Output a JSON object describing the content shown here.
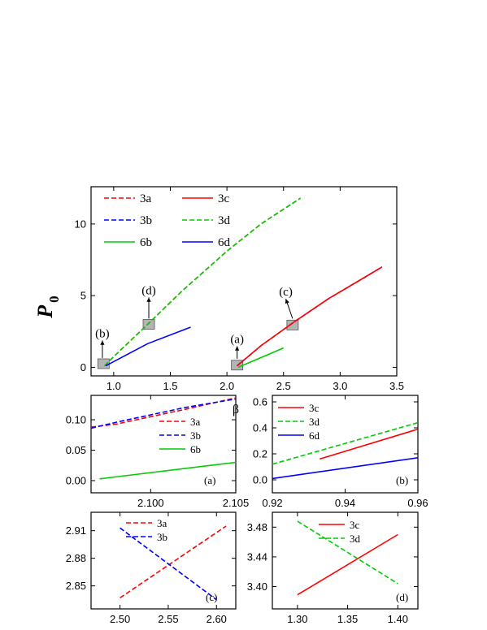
{
  "figure": {
    "ylabel_main": "P",
    "ylabel_main_sub": "0",
    "xlabel_shared": "β"
  },
  "chart_data": [
    {
      "id": "main",
      "type": "line",
      "xlim": [
        0.8,
        3.5
      ],
      "ylim": [
        -0.6,
        12.6
      ],
      "xticks": [
        "1.0",
        "1.5",
        "2.0",
        "2.5",
        "3.0",
        "3.5"
      ],
      "xtick_values": [
        1.0,
        1.5,
        2.0,
        2.5,
        3.0,
        3.5
      ],
      "yticks": [
        "0",
        "5",
        "10"
      ],
      "ytick_values": [
        0,
        5,
        10
      ],
      "legend_layout": "top-left, two columns",
      "series": [
        {
          "name": "3a",
          "color": "#ff0000",
          "dash": "dashed",
          "x": [
            0.92,
            1.0,
            1.3,
            1.6,
            2.0,
            2.3,
            2.65
          ],
          "y": [
            0.1,
            0.75,
            3.0,
            5.3,
            8.1,
            10.0,
            11.8
          ]
        },
        {
          "name": "3b",
          "color": "#0000ff",
          "dash": "dashed",
          "x": [
            2.09,
            2.3,
            2.6,
            2.9,
            3.2,
            3.37
          ],
          "y": [
            0.1,
            1.5,
            3.2,
            4.8,
            6.2,
            7.0
          ]
        },
        {
          "name": "6b",
          "color": "#00cc00",
          "dash": "solid",
          "x": [
            2.1,
            2.5
          ],
          "y": [
            0.0,
            1.35
          ]
        },
        {
          "name": "3c",
          "color": "#ff0000",
          "dash": "solid",
          "x": [
            2.09,
            2.3,
            2.6,
            2.9,
            3.2,
            3.37
          ],
          "y": [
            0.1,
            1.5,
            3.2,
            4.8,
            6.2,
            7.0
          ]
        },
        {
          "name": "3d",
          "color": "#00cc00",
          "dash": "dashed",
          "x": [
            0.92,
            1.0,
            1.3,
            1.6,
            2.0,
            2.3,
            2.65
          ],
          "y": [
            0.1,
            0.75,
            3.0,
            5.3,
            8.1,
            10.0,
            11.8
          ]
        },
        {
          "name": "6d",
          "color": "#0000ff",
          "dash": "solid",
          "x": [
            0.93,
            1.3,
            1.68
          ],
          "y": [
            0.1,
            1.65,
            2.8
          ]
        }
      ],
      "boxes": [
        {
          "x": 0.91,
          "y": 0.25
        },
        {
          "x": 1.31,
          "y": 3.0
        },
        {
          "x": 2.09,
          "y": 0.15
        },
        {
          "x": 2.58,
          "y": 2.95
        }
      ],
      "annotations": [
        {
          "text": "(b)",
          "x": 0.9,
          "y": 2.1,
          "ax": 0.9,
          "ay": 0.65
        },
        {
          "text": "(d)",
          "x": 1.31,
          "y": 5.1,
          "ax": 1.31,
          "ay": 3.4
        },
        {
          "text": "(a)",
          "x": 2.09,
          "y": 1.7,
          "ax": 2.09,
          "ay": 0.6
        },
        {
          "text": "(c)",
          "x": 2.52,
          "y": 5.0,
          "ax": 2.58,
          "ay": 3.4
        }
      ]
    },
    {
      "id": "a",
      "type": "line",
      "panel_label": "(a)",
      "xlim": [
        2.0965,
        2.105
      ],
      "ylim": [
        -0.02,
        0.14
      ],
      "xticks": [
        "2.100",
        "2.105"
      ],
      "xtick_values": [
        2.1,
        2.105
      ],
      "yticks": [
        "0.00",
        "0.05",
        "0.10"
      ],
      "ytick_values": [
        0.0,
        0.05,
        0.1
      ],
      "legend_layout": "right, single column",
      "series": [
        {
          "name": "3a",
          "color": "#ff0000",
          "dash": "dashed",
          "x": [
            2.0965,
            2.098,
            2.1,
            2.102,
            2.105
          ],
          "y": [
            0.088,
            0.093,
            0.105,
            0.117,
            0.136
          ]
        },
        {
          "name": "3b",
          "color": "#0000ff",
          "dash": "dashed",
          "x": [
            2.0965,
            2.098,
            2.1,
            2.102,
            2.105
          ],
          "y": [
            0.086,
            0.096,
            0.108,
            0.12,
            0.134
          ]
        },
        {
          "name": "6b",
          "color": "#00cc00",
          "dash": "solid",
          "x": [
            2.097,
            2.105
          ],
          "y": [
            0.003,
            0.03
          ]
        }
      ]
    },
    {
      "id": "b",
      "type": "line",
      "panel_label": "(b)",
      "xlim": [
        0.92,
        0.96
      ],
      "ylim": [
        -0.1,
        0.65
      ],
      "xticks": [
        "0.92",
        "0.94",
        "0.96"
      ],
      "xtick_values": [
        0.92,
        0.94,
        0.96
      ],
      "yticks": [
        "0.0",
        "0.2",
        "0.4",
        "0.6"
      ],
      "ytick_values": [
        0.0,
        0.2,
        0.4,
        0.6
      ],
      "legend_layout": "top-left, single column",
      "series": [
        {
          "name": "3c",
          "color": "#ff0000",
          "dash": "solid",
          "x": [
            0.933,
            0.96
          ],
          "y": [
            0.16,
            0.39
          ]
        },
        {
          "name": "3d",
          "color": "#00cc00",
          "dash": "dashed",
          "x": [
            0.92,
            0.96
          ],
          "y": [
            0.12,
            0.44
          ]
        },
        {
          "name": "6d",
          "color": "#0000ff",
          "dash": "solid",
          "x": [
            0.92,
            0.96
          ],
          "y": [
            0.01,
            0.17
          ]
        }
      ]
    },
    {
      "id": "c",
      "type": "line",
      "panel_label": "(c)",
      "xlim": [
        2.47,
        2.62
      ],
      "ylim": [
        2.825,
        2.93
      ],
      "xticks": [
        "2.50",
        "2.55",
        "2.60"
      ],
      "xtick_values": [
        2.5,
        2.55,
        2.6
      ],
      "yticks": [
        "2.85",
        "2.88",
        "2.91"
      ],
      "ytick_values": [
        2.85,
        2.88,
        2.91
      ],
      "legend_layout": "top-center, single column",
      "series": [
        {
          "name": "3a",
          "color": "#ff0000",
          "dash": "dashed",
          "x": [
            2.5,
            2.61
          ],
          "y": [
            2.837,
            2.915
          ]
        },
        {
          "name": "3b",
          "color": "#0000ff",
          "dash": "dashed",
          "x": [
            2.5,
            2.6
          ],
          "y": [
            2.913,
            2.835
          ]
        }
      ]
    },
    {
      "id": "d",
      "type": "line",
      "panel_label": "(d)",
      "xlim": [
        1.275,
        1.42
      ],
      "ylim": [
        3.37,
        3.5
      ],
      "xticks": [
        "1.30",
        "1.35",
        "1.40"
      ],
      "xtick_values": [
        1.3,
        1.35,
        1.4
      ],
      "yticks": [
        "3.40",
        "3.44",
        "3.48"
      ],
      "ytick_values": [
        3.4,
        3.44,
        3.48
      ],
      "legend_layout": "top-center, single column",
      "series": [
        {
          "name": "3c",
          "color": "#ff0000",
          "dash": "solid",
          "x": [
            1.3,
            1.4
          ],
          "y": [
            3.389,
            3.47
          ]
        },
        {
          "name": "3d",
          "color": "#00cc00",
          "dash": "dashed",
          "x": [
            1.3,
            1.4
          ],
          "y": [
            3.488,
            3.404
          ]
        }
      ]
    }
  ]
}
